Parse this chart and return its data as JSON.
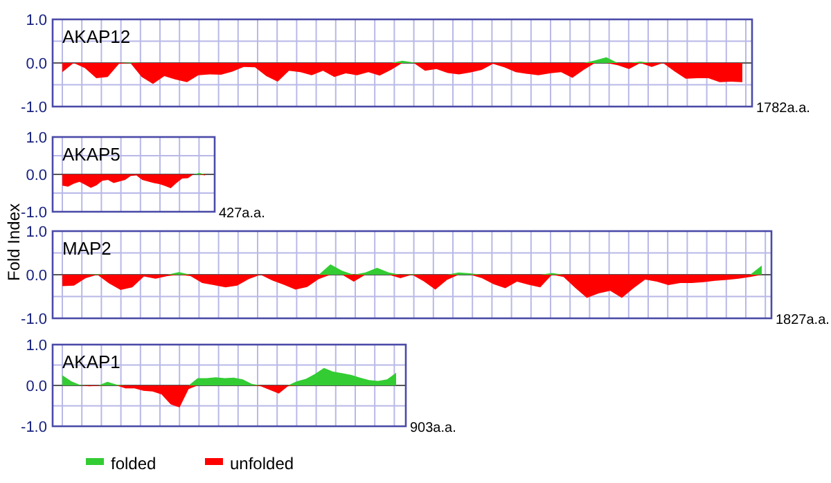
{
  "chart_data": [
    {
      "type": "area",
      "title": "AKAP12",
      "grid": true,
      "annotations": [
        "1782a.a."
      ],
      "ylim": [
        -1,
        1
      ],
      "yticks": [
        {
          "value": -1,
          "label": "-1.0"
        },
        {
          "value": -0.5,
          "label": null
        },
        {
          "value": 0,
          "label": "0.0"
        },
        {
          "value": 0.5,
          "label": null
        },
        {
          "value": 1,
          "label": "1.0"
        }
      ],
      "categories": [
        null,
        null,
        null,
        null,
        null,
        null,
        null,
        null,
        null,
        null,
        null,
        null,
        null,
        null,
        null,
        null,
        null,
        null,
        null,
        null,
        null,
        null,
        null,
        null,
        null,
        null,
        null,
        null,
        null,
        null,
        null,
        null,
        null,
        null,
        null,
        null,
        null,
        null,
        null,
        null,
        null,
        null,
        null,
        null,
        null,
        null,
        null,
        null,
        null,
        null,
        null,
        null,
        null,
        null,
        null,
        null,
        null,
        null,
        null,
        null,
        null
      ],
      "series": [
        {
          "color": "#33cc33",
          "values": [
            0,
            0,
            0,
            0,
            0,
            0,
            0.01,
            0,
            0,
            0,
            0,
            0,
            0,
            0,
            0,
            0,
            0,
            0,
            0,
            0,
            0,
            0,
            0,
            0,
            0,
            0,
            0,
            0,
            0,
            0,
            0.05,
            0.01,
            0,
            0,
            0,
            0,
            0,
            0,
            0,
            0,
            0,
            0,
            0,
            0,
            0,
            0,
            0,
            0.06,
            0.13,
            0,
            0,
            0.03,
            0,
            0,
            0,
            0,
            0,
            0,
            0,
            0,
            0
          ]
        },
        {
          "color": "#ff0000",
          "values": [
            -0.21,
            0,
            -0.12,
            -0.35,
            -0.32,
            -0.02,
            0,
            -0.32,
            -0.48,
            -0.3,
            -0.38,
            -0.44,
            -0.28,
            -0.26,
            -0.27,
            -0.2,
            -0.09,
            -0.1,
            -0.3,
            -0.43,
            -0.18,
            -0.21,
            -0.28,
            -0.18,
            -0.32,
            -0.24,
            -0.28,
            -0.21,
            -0.29,
            -0.16,
            0,
            0,
            -0.18,
            -0.14,
            -0.23,
            -0.26,
            -0.22,
            -0.16,
            -0.02,
            -0.1,
            -0.21,
            -0.25,
            -0.28,
            -0.24,
            -0.21,
            -0.34,
            -0.16,
            0,
            0,
            -0.05,
            -0.14,
            0,
            -0.09,
            0,
            -0.19,
            -0.36,
            -0.35,
            -0.35,
            -0.44,
            -0.43,
            -0.44
          ]
        }
      ]
    },
    {
      "type": "area",
      "title": "AKAP5",
      "ylabel": "Fold Index",
      "grid": true,
      "annotations": [
        "427a.a."
      ],
      "ylim": [
        -1,
        1
      ],
      "yticks": [
        {
          "value": -1,
          "label": "-1.0"
        },
        {
          "value": -0.5,
          "label": null
        },
        {
          "value": 0,
          "label": "0.0"
        },
        {
          "value": 0.5,
          "label": null
        },
        {
          "value": 1,
          "label": "1.0"
        }
      ],
      "categories": [
        null,
        null,
        null,
        null,
        null,
        null,
        null,
        null,
        null,
        null,
        null,
        null,
        null,
        null,
        null,
        null,
        null,
        null,
        null,
        null,
        null,
        null,
        null,
        null,
        null,
        null
      ],
      "series": [
        {
          "color": "#33cc33",
          "values": [
            0,
            0,
            0,
            0,
            0,
            0,
            0,
            0,
            0,
            0,
            0,
            0,
            0,
            0,
            0,
            0,
            0,
            0,
            0,
            0,
            0,
            0,
            0,
            0,
            0.04,
            0
          ]
        },
        {
          "color": "#ff0000",
          "values": [
            -0.3,
            -0.33,
            -0.25,
            -0.2,
            -0.28,
            -0.36,
            -0.29,
            -0.17,
            -0.15,
            -0.23,
            -0.19,
            -0.15,
            -0.04,
            -0.03,
            -0.15,
            -0.19,
            -0.23,
            -0.26,
            -0.31,
            -0.37,
            -0.23,
            -0.11,
            -0.1,
            0,
            0,
            -0.03
          ]
        }
      ]
    },
    {
      "type": "area",
      "title": "MAP2",
      "grid": true,
      "annotations": [
        "1827a.a."
      ],
      "ylim": [
        -1,
        1
      ],
      "yticks": [
        {
          "value": -1,
          "label": "-1.0"
        },
        {
          "value": -0.5,
          "label": null
        },
        {
          "value": 0,
          "label": "0.0"
        },
        {
          "value": 0.5,
          "label": null
        },
        {
          "value": 1,
          "label": "1.0"
        }
      ],
      "categories": [
        null,
        null,
        null,
        null,
        null,
        null,
        null,
        null,
        null,
        null,
        null,
        null,
        null,
        null,
        null,
        null,
        null,
        null,
        null,
        null,
        null,
        null,
        null,
        null,
        null,
        null,
        null,
        null,
        null,
        null,
        null,
        null,
        null,
        null,
        null,
        null,
        null,
        null,
        null,
        null,
        null,
        null,
        null,
        null,
        null,
        null,
        null,
        null,
        null,
        null,
        null,
        null,
        null,
        null,
        null,
        null,
        null,
        null,
        null,
        null,
        null
      ],
      "series": [
        {
          "color": "#33cc33",
          "values": [
            0,
            0,
            0,
            0.01,
            0,
            0,
            0,
            0,
            0,
            0,
            0.06,
            0,
            0,
            0,
            0,
            0,
            0,
            0,
            0,
            0,
            0,
            0,
            0,
            0.24,
            0.09,
            0,
            0.05,
            0.16,
            0.05,
            0,
            0.01,
            0,
            0,
            0,
            0.05,
            0.03,
            0,
            0,
            0,
            0,
            0,
            0,
            0.04,
            0,
            0,
            0,
            0,
            0,
            0,
            0,
            0,
            0,
            0,
            0,
            0,
            0,
            0,
            0,
            0,
            0,
            0.21
          ]
        },
        {
          "color": "#ff0000",
          "values": [
            -0.26,
            -0.25,
            -0.08,
            0,
            -0.2,
            -0.35,
            -0.29,
            -0.04,
            -0.09,
            -0.03,
            0,
            -0.03,
            -0.19,
            -0.24,
            -0.29,
            -0.25,
            -0.1,
            0,
            -0.13,
            -0.23,
            -0.34,
            -0.28,
            -0.1,
            0,
            0,
            -0.16,
            0,
            0,
            0,
            -0.08,
            0,
            -0.15,
            -0.34,
            -0.12,
            0,
            0,
            -0.08,
            -0.22,
            -0.31,
            -0.16,
            -0.23,
            -0.29,
            0,
            -0.05,
            -0.3,
            -0.53,
            -0.43,
            -0.37,
            -0.53,
            -0.31,
            -0.11,
            -0.16,
            -0.24,
            -0.19,
            -0.19,
            -0.17,
            -0.14,
            -0.12,
            -0.09,
            -0.05,
            0
          ]
        }
      ]
    },
    {
      "type": "area",
      "title": "AKAP1",
      "grid": true,
      "legend": "bottom",
      "annotations": [
        "903a.a."
      ],
      "ylim": [
        -1,
        1
      ],
      "yticks": [
        {
          "value": -1,
          "label": "-1.0"
        },
        {
          "value": -0.5,
          "label": null
        },
        {
          "value": 0,
          "label": "0.0"
        },
        {
          "value": 0.5,
          "label": null
        },
        {
          "value": 1,
          "label": "1.0"
        }
      ],
      "categories": [
        null,
        null,
        null,
        null,
        null,
        null,
        null,
        null,
        null,
        null,
        null,
        null,
        null,
        null,
        null,
        null,
        null,
        null,
        null,
        null,
        null,
        null,
        null,
        null,
        null,
        null,
        null,
        null,
        null,
        null,
        null,
        null,
        null,
        null,
        null,
        null,
        null,
        null
      ],
      "series": [
        {
          "name": "folded",
          "color": "#33cc33",
          "values": [
            0.25,
            0.1,
            0.01,
            0,
            0,
            0.09,
            0.02,
            0,
            0,
            0,
            0,
            0,
            0,
            0,
            0,
            0.18,
            0.18,
            0.2,
            0.18,
            0.19,
            0.15,
            0.04,
            0,
            0,
            0,
            0,
            0.1,
            0.16,
            0.28,
            0.43,
            0.34,
            0.3,
            0.26,
            0.19,
            0.13,
            0.11,
            0.15,
            0.31
          ]
        },
        {
          "name": "unfolded",
          "color": "#ff0000",
          "values": [
            0,
            0,
            0,
            -0.02,
            -0.01,
            0,
            0,
            -0.07,
            -0.07,
            -0.13,
            -0.15,
            -0.22,
            -0.46,
            -0.54,
            -0.09,
            0,
            0,
            0,
            0,
            0,
            0,
            0,
            -0.02,
            -0.11,
            -0.2,
            -0.02,
            0,
            0,
            0,
            0,
            0,
            0,
            0,
            0,
            0,
            0,
            0,
            0
          ]
        }
      ]
    }
  ]
}
